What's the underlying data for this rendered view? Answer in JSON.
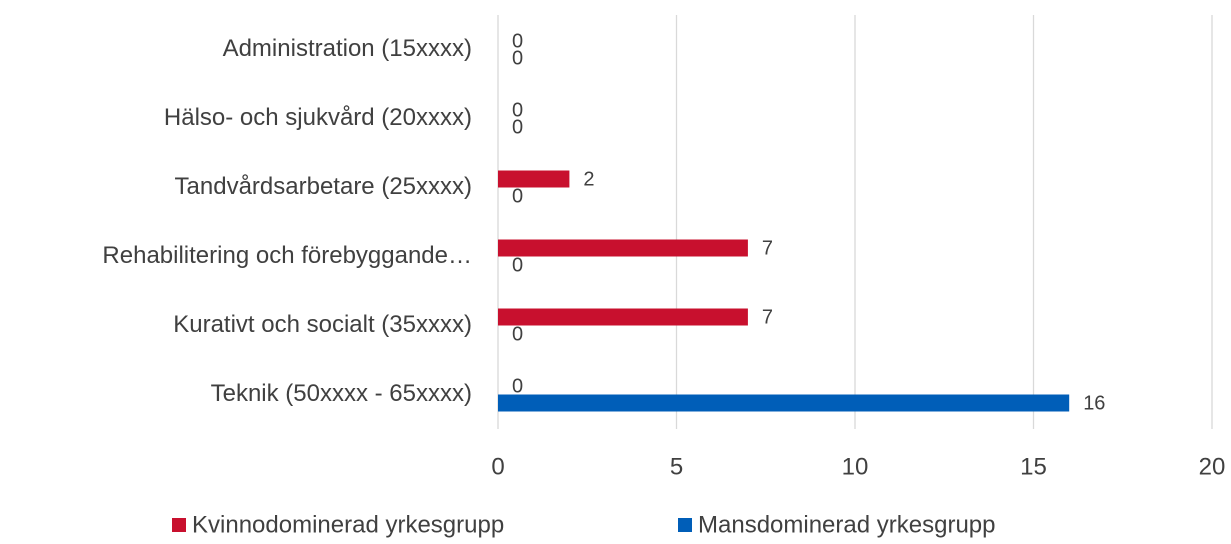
{
  "chart_data": {
    "type": "hbar",
    "categories": [
      "Administration (15xxxx)",
      "Hälso- och sjukvård (20xxxx)",
      "Tandvårdsarbetare (25xxxx)",
      "Rehabilitering och förebyggande…",
      "Kurativt och socialt (35xxxx)",
      "Teknik (50xxxx - 65xxxx)"
    ],
    "series": [
      {
        "name": "Kvinnodominerad yrkesgrupp",
        "color": "#c8102e",
        "values": [
          0,
          0,
          2,
          7,
          7,
          0
        ]
      },
      {
        "name": "Mansdominerad yrkesgrupp",
        "color": "#005eb8",
        "values": [
          0,
          0,
          0,
          0,
          0,
          16
        ]
      }
    ],
    "xlim": [
      0,
      20
    ],
    "xticks": [
      0,
      5,
      10,
      15,
      20
    ],
    "grid": true,
    "legend": "bottom"
  }
}
